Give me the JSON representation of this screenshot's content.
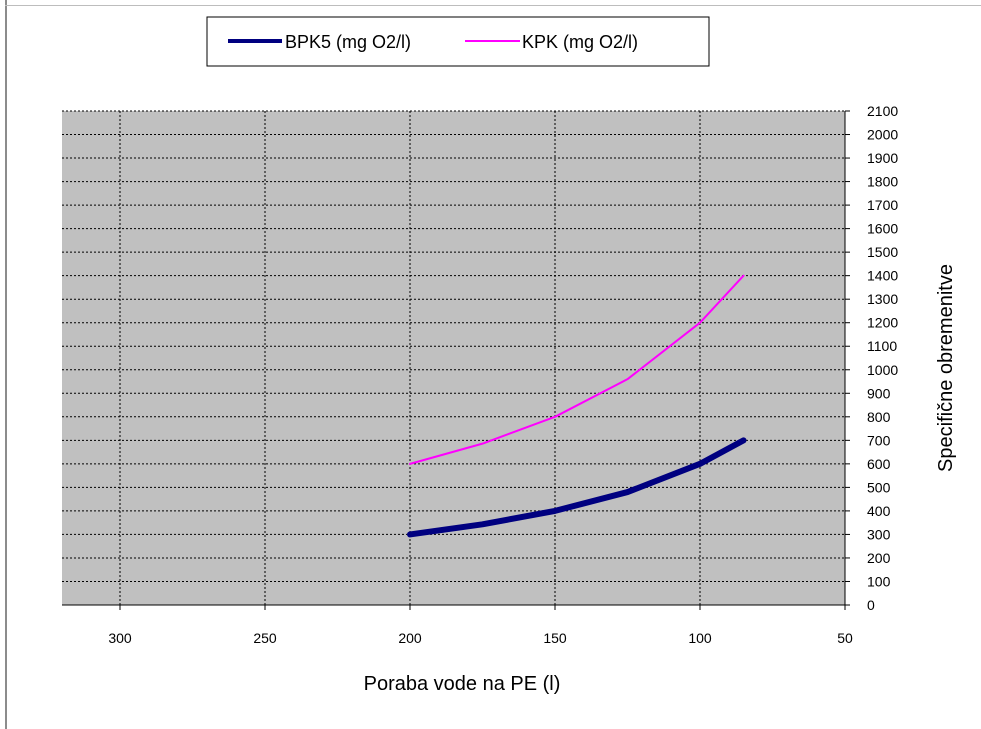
{
  "chart_data": {
    "type": "line",
    "xlabel": "Poraba vode na PE (l)",
    "ylabel": "Specifične obremenitve",
    "x_ticks": [
      300,
      250,
      200,
      150,
      100,
      50
    ],
    "y_ticks": [
      0,
      100,
      200,
      300,
      400,
      500,
      600,
      700,
      800,
      900,
      1000,
      1100,
      1200,
      1300,
      1400,
      1500,
      1600,
      1700,
      1800,
      1900,
      2000,
      2100
    ],
    "xlim": [
      320,
      50
    ],
    "ylim": [
      0,
      2100
    ],
    "x_reversed": true,
    "y_axis_side": "right",
    "grid": true,
    "legend_position": "top",
    "plot_background": "#c0c0c0",
    "series": [
      {
        "name": "BPK5 (mg O2/l)",
        "color": "#000080",
        "x": [
          200,
          175,
          150,
          125,
          100,
          85
        ],
        "y": [
          300,
          343,
          400,
          480,
          600,
          700
        ]
      },
      {
        "name": "KPK (mg O2/l)",
        "color": "#ff00ff",
        "x": [
          200,
          175,
          150,
          125,
          100,
          85
        ],
        "y": [
          600,
          686,
          800,
          960,
          1200,
          1400
        ]
      }
    ]
  }
}
